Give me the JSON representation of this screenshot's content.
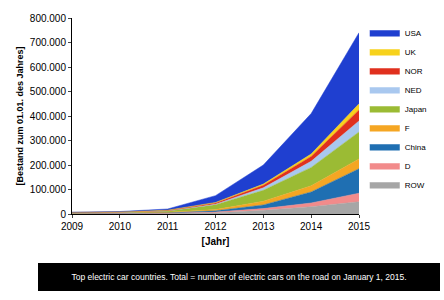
{
  "chart_data": {
    "type": "area",
    "stacked": true,
    "grid": false,
    "legend": "right",
    "caption": "Top electric car countries. Total = number of electric cars on the road on January 1, 2015.",
    "xlabel": "[Jahr]",
    "ylabel": "[Bestand zum 01.01. des Jahres]",
    "x": [
      2009,
      2010,
      2011,
      2012,
      2013,
      2014,
      2015
    ],
    "xlim": [
      2009,
      2015
    ],
    "xticks": [
      2009,
      2010,
      2011,
      2012,
      2013,
      2014,
      2015
    ],
    "ylim": [
      0,
      800000
    ],
    "yticks": [
      0,
      {
        "value": 100000,
        "label": "100.000"
      },
      {
        "value": 200000,
        "label": "200.000"
      },
      {
        "value": 300000,
        "label": "300.000"
      },
      {
        "value": 400000,
        "label": "400.000"
      },
      {
        "value": 500000,
        "label": "500.000"
      },
      {
        "value": 600000,
        "label": "600.000"
      },
      {
        "value": 700000,
        "label": "700.000"
      },
      {
        "value": 800000,
        "label": "800.000"
      }
    ],
    "series": [
      {
        "name": "ROW",
        "color": "#a6a6a6",
        "values": [
          2000,
          2000,
          3000,
          5000,
          15000,
          30000,
          50000
        ]
      },
      {
        "name": "D",
        "color": "#f28b8b",
        "values": [
          1000,
          1000,
          1000,
          3000,
          7000,
          15000,
          35000
        ]
      },
      {
        "name": "China",
        "color": "#1f6fb2",
        "values": [
          500,
          1000,
          2000,
          5000,
          15000,
          45000,
          100000
        ]
      },
      {
        "name": "F",
        "color": "#f5a623",
        "values": [
          500,
          500,
          1000,
          5000,
          15000,
          25000,
          40000
        ]
      },
      {
        "name": "Japan",
        "color": "#9bbb34",
        "values": [
          1000,
          2000,
          5000,
          20000,
          45000,
          75000,
          110000
        ]
      },
      {
        "name": "NED",
        "color": "#a9c8ef",
        "values": [
          100,
          200,
          500,
          2000,
          10000,
          25000,
          45000
        ]
      },
      {
        "name": "NOR",
        "color": "#e0301e",
        "values": [
          1000,
          1500,
          2000,
          5000,
          10000,
          20000,
          45000
        ]
      },
      {
        "name": "UK",
        "color": "#f7d21c",
        "values": [
          500,
          500,
          1000,
          2000,
          5000,
          10000,
          25000
        ]
      },
      {
        "name": "USA",
        "color": "#1f3fd0",
        "values": [
          1000,
          1500,
          5000,
          28000,
          78000,
          165000,
          290000
        ]
      }
    ]
  }
}
